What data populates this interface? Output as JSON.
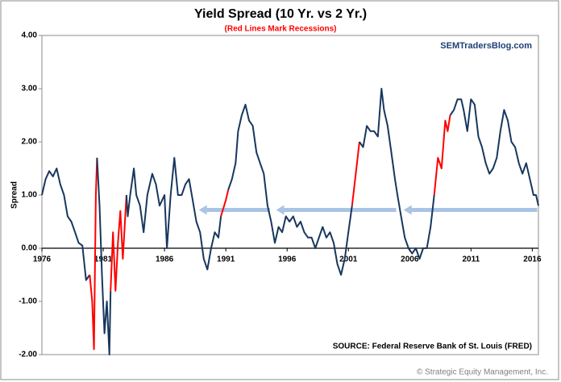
{
  "chart_data": {
    "type": "line",
    "title": "Yield Spread (10 Yr. vs 2 Yr.)",
    "subtitle": "(Red Lines Mark Recessions)",
    "watermark": "SEMTradersBlog.com",
    "ylabel": "Spread",
    "source": "SOURCE:  Federal Reserve Bank of St. Louis (FRED)",
    "footer": "© Strategic Equity Management, Inc.",
    "color": "#17375e",
    "highlight_color": "#ff0000",
    "highlight_ranges": [
      [
        1980.0,
        1980.5
      ],
      [
        1981.6,
        1982.9
      ],
      [
        1990.6,
        1991.2
      ],
      [
        2001.2,
        2001.9
      ],
      [
        2008.0,
        2009.3
      ]
    ],
    "arrow_color": "#a9c4e4",
    "arrows": [
      {
        "x": [
          1988.8,
          1994.6
        ],
        "y": 0.72
      },
      {
        "x": [
          1995.1,
          2004.9
        ],
        "y": 0.72
      },
      {
        "x": [
          2005.5,
          2016.4
        ],
        "y": 0.72
      }
    ],
    "xlim": [
      1976,
      2016.5
    ],
    "xticks": [
      1976,
      1981,
      1986,
      1991,
      1996,
      2001,
      2006,
      2011,
      2016
    ],
    "ylim": [
      -2,
      4
    ],
    "yticks": [
      {
        "value": -2,
        "label": "-2.00"
      },
      {
        "value": -1,
        "label": "-1.00"
      },
      {
        "value": 0,
        "label": "0.00"
      },
      {
        "value": 1,
        "label": "1.00"
      },
      {
        "value": 2,
        "label": "2.00"
      },
      {
        "value": 3,
        "label": "3.00"
      },
      {
        "value": 4,
        "label": "4.00"
      }
    ],
    "x": [
      1976.0,
      1976.3,
      1976.6,
      1976.9,
      1977.2,
      1977.5,
      1977.8,
      1978.1,
      1978.4,
      1978.7,
      1979.0,
      1979.3,
      1979.6,
      1979.9,
      1980.1,
      1980.25,
      1980.4,
      1980.5,
      1980.7,
      1980.9,
      1981.1,
      1981.3,
      1981.5,
      1981.6,
      1981.8,
      1982.0,
      1982.2,
      1982.4,
      1982.6,
      1982.8,
      1982.9,
      1983.0,
      1983.2,
      1983.5,
      1983.7,
      1984.0,
      1984.3,
      1984.6,
      1985.0,
      1985.3,
      1985.6,
      1986.0,
      1986.2,
      1986.5,
      1986.8,
      1987.1,
      1987.4,
      1987.7,
      1988.0,
      1988.3,
      1988.6,
      1988.9,
      1989.2,
      1989.5,
      1989.8,
      1990.1,
      1990.4,
      1990.6,
      1991.0,
      1991.2,
      1991.5,
      1991.8,
      1992.0,
      1992.3,
      1992.6,
      1992.9,
      1993.2,
      1993.5,
      1993.8,
      1994.1,
      1994.4,
      1994.7,
      1995.0,
      1995.3,
      1995.6,
      1995.9,
      1996.2,
      1996.5,
      1996.8,
      1997.1,
      1997.4,
      1997.7,
      1998.0,
      1998.3,
      1998.6,
      1998.9,
      1999.2,
      1999.5,
      1999.8,
      2000.1,
      2000.4,
      2000.7,
      2001.0,
      2001.3,
      2001.6,
      2001.9,
      2002.2,
      2002.5,
      2002.8,
      2003.1,
      2003.4,
      2003.7,
      2003.9,
      2004.2,
      2004.5,
      2004.8,
      2005.0,
      2005.3,
      2005.6,
      2005.9,
      2006.2,
      2006.5,
      2006.8,
      2007.1,
      2007.4,
      2007.7,
      2008.0,
      2008.3,
      2008.6,
      2008.9,
      2009.1,
      2009.3,
      2009.6,
      2009.9,
      2010.2,
      2010.4,
      2010.7,
      2011.0,
      2011.3,
      2011.6,
      2011.9,
      2012.2,
      2012.5,
      2012.8,
      2013.1,
      2013.4,
      2013.7,
      2014.0,
      2014.3,
      2014.6,
      2014.9,
      2015.2,
      2015.5,
      2015.8,
      2016.1,
      2016.3,
      2016.5
    ],
    "values": [
      1.0,
      1.3,
      1.45,
      1.35,
      1.5,
      1.2,
      1.0,
      0.6,
      0.5,
      0.3,
      0.1,
      0.05,
      -0.6,
      -0.5,
      -1.0,
      -1.9,
      1.0,
      1.7,
      0.8,
      -0.5,
      -1.6,
      -1.0,
      -2.0,
      -0.8,
      0.3,
      -0.8,
      0.1,
      0.7,
      -0.2,
      0.6,
      1.0,
      0.6,
      1.0,
      1.5,
      1.0,
      0.8,
      0.3,
      1.0,
      1.4,
      1.2,
      0.8,
      1.0,
      0.0,
      1.0,
      1.7,
      1.0,
      1.0,
      1.2,
      1.3,
      0.9,
      0.5,
      0.3,
      -0.2,
      -0.4,
      0.0,
      0.3,
      0.2,
      0.6,
      0.9,
      1.1,
      1.3,
      1.6,
      2.2,
      2.5,
      2.7,
      2.4,
      2.3,
      1.8,
      1.6,
      1.4,
      0.8,
      0.5,
      0.1,
      0.4,
      0.3,
      0.6,
      0.5,
      0.6,
      0.4,
      0.5,
      0.3,
      0.2,
      0.2,
      0.0,
      0.2,
      0.4,
      0.2,
      0.3,
      0.1,
      -0.3,
      -0.5,
      -0.2,
      0.3,
      0.8,
      1.4,
      2.0,
      1.9,
      2.3,
      2.2,
      2.2,
      2.1,
      3.0,
      2.6,
      2.3,
      1.8,
      1.3,
      1.0,
      0.6,
      0.2,
      0.0,
      -0.1,
      0.0,
      -0.2,
      0.0,
      0.0,
      0.4,
      1.0,
      1.7,
      1.5,
      2.4,
      2.2,
      2.5,
      2.6,
      2.8,
      2.8,
      2.6,
      2.2,
      2.8,
      2.7,
      2.1,
      1.9,
      1.6,
      1.4,
      1.5,
      1.7,
      2.2,
      2.6,
      2.4,
      2.0,
      1.9,
      1.6,
      1.4,
      1.6,
      1.3,
      1.0,
      1.0,
      0.8
    ]
  }
}
